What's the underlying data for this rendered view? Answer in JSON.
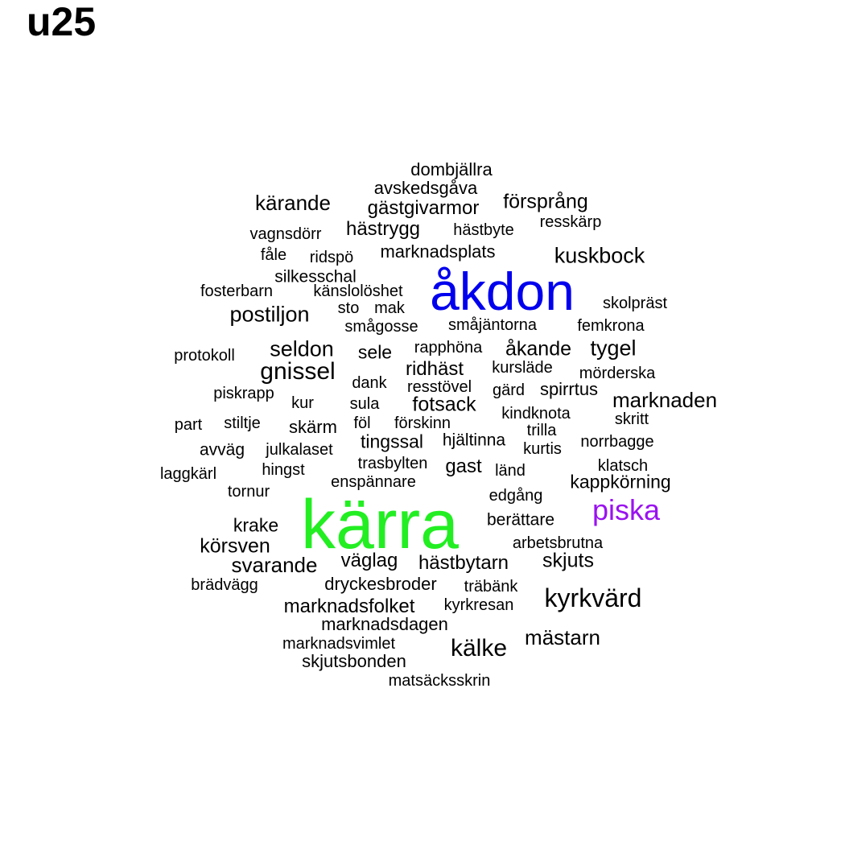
{
  "title": "u25",
  "colors": {
    "default": "#000000",
    "kärra": "#22ee22",
    "åkdon": "#0000ee",
    "piska": "#9a12f0"
  },
  "words": [
    "kärra",
    "åkdon",
    "piska",
    "kyrkvärd",
    "kälke",
    "gnissel",
    "kuskbock",
    "seldon",
    "postiljon",
    "mästarn",
    "svarande",
    "marknaden",
    "kärande",
    "marknadsfolket",
    "fotsack",
    "körsven",
    "tygel",
    "skjuts",
    "åkande",
    "försprång",
    "ridhäst",
    "gästgivarmor",
    "hästrygg",
    "väglag",
    "hästbytarn",
    "marknadsplats",
    "sele",
    "tingssal",
    "marknadsdagen",
    "dryckesbroder",
    "skjutsbonden",
    "dombjällra",
    "avskedsgåva",
    "gast",
    "krake",
    "skärm",
    "hjältinna",
    "kappkörning",
    "berättare",
    "spirrtus",
    "hästbyte",
    "resskärp",
    "vagnsdörr",
    "fåle",
    "ridspö",
    "silkesschal",
    "fosterbarn",
    "känslolöshet",
    "sto",
    "mak",
    "skolpräst",
    "smågosse",
    "småjäntorna",
    "femkrona",
    "protokoll",
    "rapphöna",
    "kursläde",
    "mörderska",
    "dank",
    "resstövel",
    "gärd",
    "piskrapp",
    "kur",
    "sula",
    "kindknota",
    "skritt",
    "part",
    "stiltje",
    "föl",
    "förskinn",
    "trilla",
    "norrbagge",
    "avväg",
    "julkalaset",
    "kurtis",
    "laggkärl",
    "hingst",
    "trasbylten",
    "länd",
    "klatsch",
    "tornur",
    "enspännare",
    "edgång",
    "arbetsbrutna",
    "brädvägg",
    "träbänk",
    "kyrkresan",
    "marknadsvimlet",
    "matsäcksskrin"
  ]
}
